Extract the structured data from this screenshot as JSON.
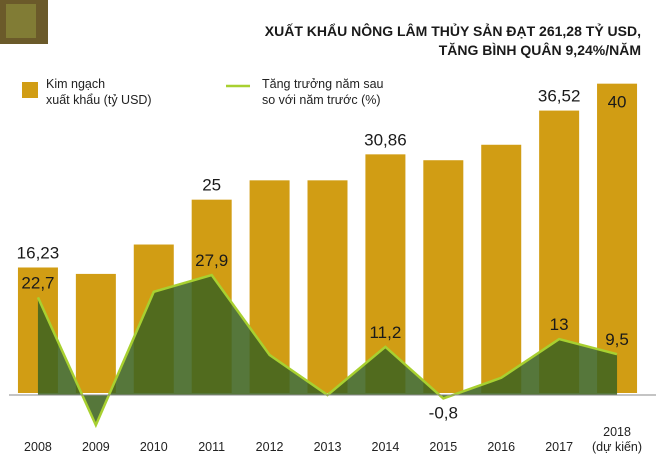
{
  "chart_data": {
    "type": "bar-area",
    "title": "XUẤT KHẨU NÔNG LÂM THỦY SẢN ĐẠT 261,28 TỶ USD,\nTĂNG BÌNH QUÂN 9,24%/NĂM",
    "categories": [
      "2008",
      "2009",
      "2010",
      "2011",
      "2012",
      "2013",
      "2014",
      "2015",
      "2016",
      "2017",
      "2018\n(dự kiến)"
    ],
    "series": [
      {
        "name": "Kim ngạch\nxuất khẩu (tỷ USD)",
        "color": "#d19d14",
        "values": [
          16.23,
          15.4,
          19.2,
          25,
          27.5,
          27.5,
          30.86,
          30.1,
          32.1,
          36.52,
          40
        ],
        "value_labels": [
          "16,23",
          null,
          null,
          "25",
          null,
          null,
          "30,86",
          null,
          null,
          "36,52",
          "40"
        ]
      },
      {
        "name": "Tăng trưởng năm sau\nso với năm trước (%)",
        "color": "#a8d030",
        "fill": "#3f6420",
        "axis": "y2",
        "values": [
          22.7,
          -7,
          24,
          27.9,
          9.3,
          0,
          11.2,
          -0.8,
          4,
          13,
          9.5
        ],
        "value_labels": [
          "22,7",
          null,
          null,
          "27,9",
          null,
          null,
          "11,2",
          "-0,8",
          null,
          "13",
          "9,5"
        ]
      }
    ],
    "ylim": [
      0,
      45
    ],
    "y2lim": [
      -10,
      70
    ]
  }
}
